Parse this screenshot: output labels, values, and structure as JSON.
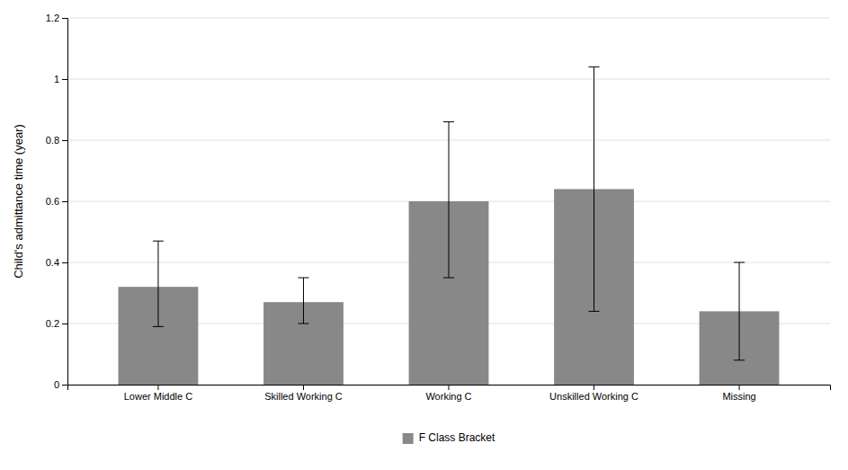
{
  "chart_data": {
    "type": "bar",
    "categories": [
      "Lower Middle C",
      "Skilled Working C",
      "Working C",
      "Unskilled Working C",
      "Missing"
    ],
    "series": [
      {
        "name": "F Class Bracket",
        "color": "#888888",
        "values": [
          0.32,
          0.27,
          0.6,
          0.64,
          0.24
        ],
        "yerr_lower": [
          0.13,
          0.07,
          0.25,
          0.4,
          0.16
        ],
        "yerr_upper": [
          0.15,
          0.08,
          0.26,
          0.4,
          0.16
        ]
      }
    ],
    "ylabel": "Child's admittance time (year)",
    "ylim": [
      0,
      1.2
    ],
    "yticks": [
      0,
      0.2,
      0.4,
      0.6,
      0.8,
      1,
      1.2
    ],
    "grid": true,
    "legend": "bottom"
  }
}
